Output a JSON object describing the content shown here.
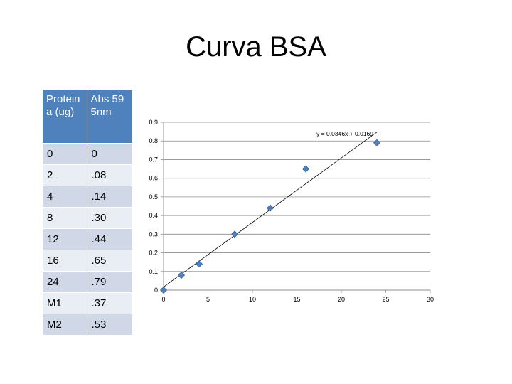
{
  "slide": {
    "title": "Curva BSA"
  },
  "table": {
    "headers": [
      "Proteina (ug)",
      "Abs 595nm"
    ],
    "rows": [
      [
        "0",
        "0"
      ],
      [
        "2",
        ".08"
      ],
      [
        "4",
        ".14"
      ],
      [
        "8",
        ".30"
      ],
      [
        "12",
        ".44"
      ],
      [
        "16",
        ".65"
      ],
      [
        "24",
        ".79"
      ],
      [
        "M1",
        ".37"
      ],
      [
        "M2",
        ".53"
      ]
    ]
  },
  "chart_data": {
    "type": "scatter",
    "title": "",
    "xlabel": "",
    "ylabel": "",
    "xlim": [
      0,
      30
    ],
    "ylim": [
      0,
      0.9
    ],
    "x_ticks": [
      "0",
      "5",
      "10",
      "15",
      "20",
      "25",
      "30"
    ],
    "y_ticks": [
      "0",
      "0.1",
      "0.2",
      "0.3",
      "0.4",
      "0.5",
      "0.6",
      "0.7",
      "0.8",
      "0.9"
    ],
    "grid": "horizontal",
    "legend": "none",
    "series": [
      {
        "x": [
          0,
          2,
          4,
          8,
          12,
          16,
          24
        ],
        "y": [
          0,
          0.08,
          0.14,
          0.3,
          0.44,
          0.65,
          0.79
        ],
        "marker": "diamond",
        "color": "#4f81bd"
      }
    ],
    "trendline": {
      "equation": "y = 0.0346x + 0.0169",
      "slope": 0.0346,
      "intercept": 0.0169,
      "x_range": [
        0,
        24
      ]
    }
  }
}
